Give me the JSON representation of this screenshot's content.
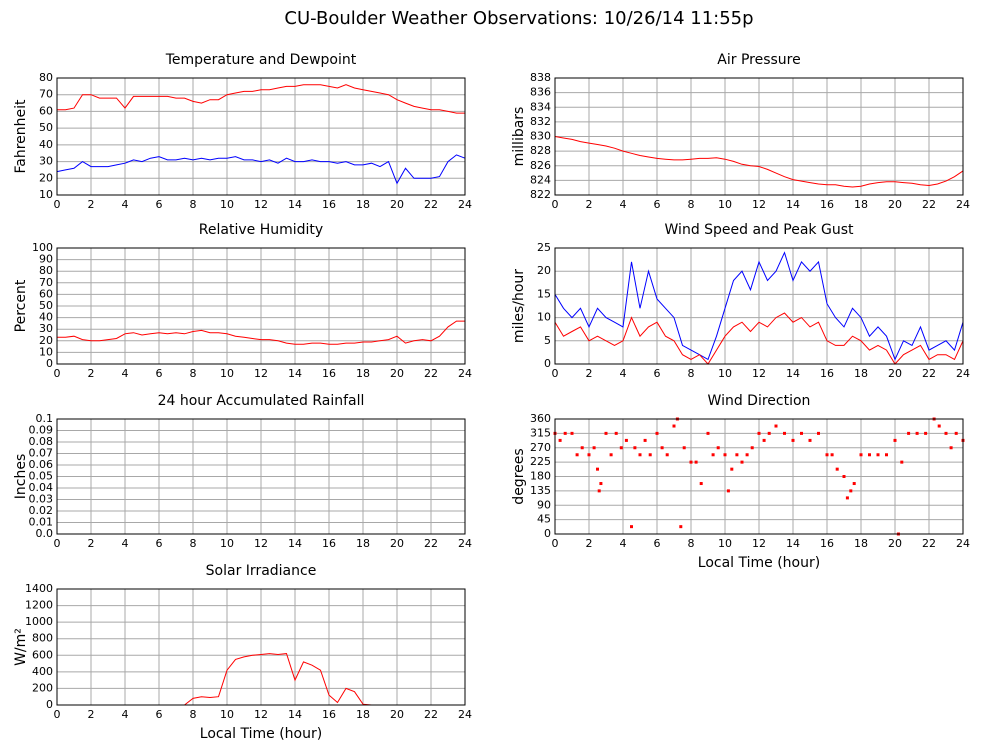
{
  "title": "CU-Boulder Weather Observations: 10/26/14 11:55p",
  "chart_data": [
    {
      "type": "line",
      "title": "Temperature and Dewpoint",
      "ylabel": "Fahrenheit",
      "x": [
        0,
        0.5,
        1,
        1.5,
        2,
        2.5,
        3,
        3.5,
        4,
        4.5,
        5,
        5.5,
        6,
        6.5,
        7,
        7.5,
        8,
        8.5,
        9,
        9.5,
        10,
        10.5,
        11,
        11.5,
        12,
        12.5,
        13,
        13.5,
        14,
        14.5,
        15,
        15.5,
        16,
        16.5,
        17,
        17.5,
        18,
        18.5,
        19,
        19.5,
        20,
        20.5,
        21,
        21.5,
        22,
        22.5,
        23,
        23.5,
        24
      ],
      "series": [
        {
          "color": "#ff0000",
          "values": [
            61,
            61,
            62,
            70,
            70,
            68,
            68,
            68,
            62,
            69,
            69,
            69,
            69,
            69,
            68,
            68,
            66,
            65,
            67,
            67,
            70,
            71,
            72,
            72,
            73,
            73,
            74,
            75,
            75,
            76,
            76,
            76,
            75,
            74,
            76,
            74,
            73,
            72,
            71,
            70,
            67,
            65,
            63,
            62,
            61,
            61,
            60,
            59,
            59
          ]
        },
        {
          "color": "#0000ff",
          "values": [
            24,
            25,
            26,
            30,
            27,
            27,
            27,
            28,
            29,
            31,
            30,
            32,
            33,
            31,
            31,
            32,
            31,
            32,
            31,
            32,
            32,
            33,
            31,
            31,
            30,
            31,
            29,
            32,
            30,
            30,
            31,
            30,
            30,
            29,
            30,
            28,
            28,
            29,
            27,
            30,
            17,
            26,
            20,
            20,
            20,
            21,
            30,
            34,
            32
          ]
        }
      ],
      "ylim": [
        10,
        80
      ],
      "yticks": [
        10,
        20,
        30,
        40,
        50,
        60,
        70,
        80
      ],
      "xlim": [
        0,
        24
      ],
      "xticks": [
        0,
        2,
        4,
        6,
        8,
        10,
        12,
        14,
        16,
        18,
        20,
        22,
        24
      ],
      "grid": true
    },
    {
      "type": "line",
      "title": "Air Pressure",
      "ylabel": "millibars",
      "x": [
        0,
        0.5,
        1,
        1.5,
        2,
        2.5,
        3,
        3.5,
        4,
        4.5,
        5,
        5.5,
        6,
        6.5,
        7,
        7.5,
        8,
        8.5,
        9,
        9.5,
        10,
        10.5,
        11,
        11.5,
        12,
        12.5,
        13,
        13.5,
        14,
        14.5,
        15,
        15.5,
        16,
        16.5,
        17,
        17.5,
        18,
        18.5,
        19,
        19.5,
        20,
        20.5,
        21,
        21.5,
        22,
        22.5,
        23,
        23.5,
        24
      ],
      "values": [
        830,
        829.8,
        829.6,
        829.3,
        829.1,
        828.9,
        828.7,
        828.4,
        828,
        827.7,
        827.4,
        827.2,
        827,
        826.9,
        826.8,
        826.8,
        826.9,
        827,
        827,
        827.1,
        826.9,
        826.6,
        826.2,
        826,
        825.9,
        825.5,
        825,
        824.5,
        824.1,
        823.9,
        823.7,
        823.5,
        823.4,
        823.4,
        823.2,
        823.1,
        823.2,
        823.5,
        823.7,
        823.8,
        823.8,
        823.7,
        823.6,
        823.4,
        823.3,
        823.5,
        823.9,
        824.5,
        825.3
      ],
      "color": "#ff0000",
      "ylim": [
        822,
        838
      ],
      "yticks": [
        822,
        824,
        826,
        828,
        830,
        832,
        834,
        836,
        838
      ],
      "xlim": [
        0,
        24
      ],
      "xticks": [
        0,
        2,
        4,
        6,
        8,
        10,
        12,
        14,
        16,
        18,
        20,
        22,
        24
      ],
      "grid": true
    },
    {
      "type": "line",
      "title": "Relative Humidity",
      "ylabel": "Percent",
      "x": [
        0,
        0.5,
        1,
        1.5,
        2,
        2.5,
        3,
        3.5,
        4,
        4.5,
        5,
        5.5,
        6,
        6.5,
        7,
        7.5,
        8,
        8.5,
        9,
        9.5,
        10,
        10.5,
        11,
        11.5,
        12,
        12.5,
        13,
        13.5,
        14,
        14.5,
        15,
        15.5,
        16,
        16.5,
        17,
        17.5,
        18,
        18.5,
        19,
        19.5,
        20,
        20.5,
        21,
        21.5,
        22,
        22.5,
        23,
        23.5,
        24
      ],
      "values": [
        23,
        23,
        24,
        21,
        20,
        20,
        21,
        22,
        26,
        27,
        25,
        26,
        27,
        26,
        27,
        26,
        28,
        29,
        27,
        27,
        26,
        24,
        23,
        22,
        21,
        21,
        20,
        18,
        17,
        17,
        18,
        18,
        17,
        17,
        18,
        18,
        19,
        19,
        20,
        21,
        24,
        18,
        20,
        21,
        20,
        24,
        32,
        37,
        37
      ],
      "color": "#ff0000",
      "ylim": [
        0,
        100
      ],
      "yticks": [
        0,
        10,
        20,
        30,
        40,
        50,
        60,
        70,
        80,
        90,
        100
      ],
      "xlim": [
        0,
        24
      ],
      "xticks": [
        0,
        2,
        4,
        6,
        8,
        10,
        12,
        14,
        16,
        18,
        20,
        22,
        24
      ],
      "grid": true
    },
    {
      "type": "line",
      "title": "Wind Speed and Peak Gust",
      "ylabel": "miles/hour",
      "x": [
        0,
        0.5,
        1,
        1.5,
        2,
        2.5,
        3,
        3.5,
        4,
        4.5,
        5,
        5.5,
        6,
        6.5,
        7,
        7.5,
        8,
        8.5,
        9,
        9.5,
        10,
        10.5,
        11,
        11.5,
        12,
        12.5,
        13,
        13.5,
        14,
        14.5,
        15,
        15.5,
        16,
        16.5,
        17,
        17.5,
        18,
        18.5,
        19,
        19.5,
        20,
        20.5,
        21,
        21.5,
        22,
        22.5,
        23,
        23.5,
        24
      ],
      "series": [
        {
          "color": "#0000ff",
          "values": [
            15,
            12,
            10,
            12,
            8,
            12,
            10,
            9,
            8,
            22,
            12,
            20,
            14,
            12,
            10,
            4,
            3,
            2,
            1,
            6,
            12,
            18,
            20,
            16,
            22,
            18,
            20,
            24,
            18,
            22,
            20,
            22,
            13,
            10,
            8,
            12,
            10,
            6,
            8,
            6,
            1,
            5,
            4,
            8,
            3,
            4,
            5,
            3,
            9
          ]
        },
        {
          "color": "#ff0000",
          "values": [
            9,
            6,
            7,
            8,
            5,
            6,
            5,
            4,
            5,
            10,
            6,
            8,
            9,
            6,
            5,
            2,
            1,
            2,
            0,
            3,
            6,
            8,
            9,
            7,
            9,
            8,
            10,
            11,
            9,
            10,
            8,
            9,
            5,
            4,
            4,
            6,
            5,
            3,
            4,
            3,
            0,
            2,
            3,
            4,
            1,
            2,
            2,
            1,
            5
          ]
        }
      ],
      "ylim": [
        0,
        25
      ],
      "yticks": [
        0,
        5,
        10,
        15,
        20,
        25
      ],
      "xlim": [
        0,
        24
      ],
      "xticks": [
        0,
        2,
        4,
        6,
        8,
        10,
        12,
        14,
        16,
        18,
        20,
        22,
        24
      ],
      "grid": true
    },
    {
      "type": "line",
      "title": "24 hour Accumulated Rainfall",
      "ylabel": "Inches",
      "x": [
        0,
        24
      ],
      "values": [
        0,
        0
      ],
      "color": "#ff0000",
      "ylim": [
        0,
        0.1
      ],
      "yticks": [
        {
          "value": 0,
          "label": "0.0"
        },
        0.01,
        0.02,
        0.03,
        0.04,
        0.05,
        0.06,
        0.07,
        0.08,
        0.09,
        0.1
      ],
      "xlim": [
        0,
        24
      ],
      "xticks": [
        0,
        2,
        4,
        6,
        8,
        10,
        12,
        14,
        16,
        18,
        20,
        22,
        24
      ],
      "grid": true
    },
    {
      "type": "scatter",
      "title": "Wind Direction",
      "ylabel": "degrees",
      "xlabel": "Local Time (hour)",
      "x": [
        0,
        0.3,
        0.6,
        1,
        1.3,
        1.6,
        2,
        2.3,
        2.5,
        2.6,
        2.7,
        3,
        3.3,
        3.6,
        3.9,
        4.2,
        4.5,
        4.7,
        5,
        5.3,
        5.6,
        6,
        6.3,
        6.6,
        7,
        7.2,
        7.4,
        7.6,
        8,
        8.3,
        8.6,
        9,
        9.3,
        9.6,
        10,
        10.2,
        10.4,
        10.7,
        11,
        11.3,
        11.6,
        12,
        12.3,
        12.6,
        13,
        13.5,
        14,
        14.5,
        15,
        15.5,
        16,
        16.3,
        16.6,
        17,
        17.2,
        17.4,
        17.6,
        18,
        18.5,
        19,
        19.5,
        20,
        20.2,
        20.4,
        20.8,
        21.3,
        21.8,
        22.3,
        22.6,
        23,
        23.3,
        23.6,
        24
      ],
      "values": [
        315,
        293,
        315,
        315,
        248,
        270,
        248,
        270,
        203,
        135,
        158,
        315,
        248,
        315,
        270,
        293,
        23,
        270,
        248,
        293,
        248,
        315,
        270,
        248,
        338,
        360,
        23,
        270,
        225,
        225,
        158,
        315,
        248,
        270,
        248,
        135,
        203,
        248,
        225,
        248,
        270,
        315,
        293,
        315,
        338,
        315,
        293,
        315,
        293,
        315,
        248,
        248,
        203,
        180,
        113,
        135,
        158,
        248,
        248,
        248,
        248,
        293,
        0,
        225,
        315,
        315,
        315,
        360,
        338,
        315,
        270,
        315,
        293
      ],
      "color": "#ff0000",
      "ylim": [
        0,
        360
      ],
      "yticks": [
        0,
        45,
        90,
        135,
        180,
        225,
        270,
        315,
        360
      ],
      "xlim": [
        0,
        24
      ],
      "xticks": [
        0,
        2,
        4,
        6,
        8,
        10,
        12,
        14,
        16,
        18,
        20,
        22,
        24
      ],
      "grid": true
    },
    {
      "type": "line",
      "title": "Solar Irradiance",
      "ylabel": "W/m²",
      "xlabel": "Local Time (hour)",
      "x": [
        0,
        0.5,
        1,
        1.5,
        2,
        2.5,
        3,
        3.5,
        4,
        4.5,
        5,
        5.5,
        6,
        6.5,
        7,
        7.5,
        8,
        8.5,
        9,
        9.5,
        10,
        10.5,
        11,
        11.5,
        12,
        12.5,
        13,
        13.5,
        14,
        14.5,
        15,
        15.5,
        16,
        16.5,
        17,
        17.5,
        18,
        18.5,
        19,
        19.5,
        20,
        20.5,
        21,
        21.5,
        22,
        22.5,
        23,
        23.5,
        24
      ],
      "values": [
        0,
        0,
        0,
        0,
        0,
        0,
        0,
        0,
        0,
        0,
        0,
        0,
        0,
        0,
        0,
        0,
        80,
        100,
        90,
        100,
        420,
        550,
        580,
        600,
        610,
        620,
        610,
        620,
        300,
        520,
        480,
        420,
        120,
        30,
        200,
        160,
        10,
        0,
        0,
        0,
        0,
        0,
        0,
        0,
        0,
        0,
        0,
        0,
        0
      ],
      "color": "#ff0000",
      "ylim": [
        0,
        1400
      ],
      "yticks": [
        0,
        200,
        400,
        600,
        800,
        1000,
        1200,
        1400
      ],
      "xlim": [
        0,
        24
      ],
      "xticks": [
        0,
        2,
        4,
        6,
        8,
        10,
        12,
        14,
        16,
        18,
        20,
        22,
        24
      ],
      "grid": true
    }
  ]
}
